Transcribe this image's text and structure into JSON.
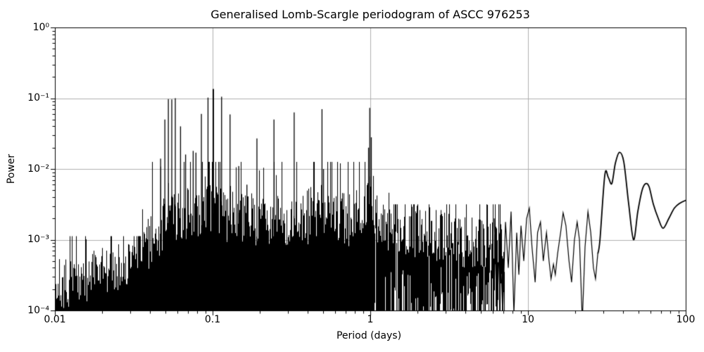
{
  "chart_data": {
    "type": "line",
    "title": "Generalised Lomb-Scargle periodogram of ASCC 976253",
    "xlabel": "Period (days)",
    "ylabel": "Power",
    "xscale": "log",
    "yscale": "log",
    "xlim": [
      0.01,
      100
    ],
    "ylim": [
      0.0001,
      1
    ],
    "grid": true,
    "legend": "none",
    "x_tick_labels": [
      "0.01",
      "0.1",
      "1",
      "10",
      "100"
    ],
    "y_tick_labels": [
      "10⁰",
      "10⁻¹",
      "10⁻²",
      "10⁻³",
      "10⁻⁴"
    ],
    "line_color": "#000000",
    "grid_color": "#b0b0b0",
    "axes_color": "#000000",
    "background": "#ffffff",
    "noise_seed": 7,
    "major_peaks_period_power": [
      [
        0.0468,
        0.014
      ],
      [
        0.0498,
        0.05
      ],
      [
        0.0524,
        0.097
      ],
      [
        0.0551,
        0.096
      ],
      [
        0.058,
        0.1
      ],
      [
        0.0626,
        0.04
      ],
      [
        0.0674,
        0.016
      ],
      [
        0.0753,
        0.018
      ],
      [
        0.0784,
        0.017
      ],
      [
        0.0849,
        0.06
      ],
      [
        0.0935,
        0.102
      ],
      [
        0.101,
        0.135
      ],
      [
        0.114,
        0.105
      ],
      [
        0.129,
        0.059
      ],
      [
        0.1465,
        0.011
      ],
      [
        0.165,
        0.006
      ],
      [
        0.191,
        0.027
      ],
      [
        0.245,
        0.05
      ],
      [
        0.329,
        0.063
      ],
      [
        0.494,
        0.07
      ],
      [
        0.505,
        0.01
      ],
      [
        0.975,
        0.02
      ],
      [
        0.992,
        0.073
      ],
      [
        1.015,
        0.028
      ]
    ],
    "noise_envelope_log10": [
      [
        -2.0,
        -3.52
      ],
      [
        -1.85,
        -3.45
      ],
      [
        -1.7,
        -3.35
      ],
      [
        -1.55,
        -3.18
      ],
      [
        -1.42,
        -2.98
      ],
      [
        -1.3,
        -2.62
      ],
      [
        -1.15,
        -2.5
      ],
      [
        -1.0,
        -2.48
      ],
      [
        -0.88,
        -2.55
      ],
      [
        -0.65,
        -2.6
      ],
      [
        -0.45,
        -2.62
      ],
      [
        -0.31,
        -2.5
      ],
      [
        -0.2,
        -2.58
      ],
      [
        -0.12,
        -2.6
      ],
      [
        -0.04,
        -2.35
      ],
      [
        0.03,
        -2.6
      ],
      [
        0.2,
        -2.72
      ],
      [
        0.45,
        -2.82
      ],
      [
        0.65,
        -2.92
      ],
      [
        0.85,
        -3.0
      ]
    ],
    "dense_region_logP": [
      -2.0,
      0.848
    ],
    "jagged_tail_period_power": [
      [
        6.11,
        0.002
      ],
      [
        6.36,
        9e-05
      ],
      [
        6.63,
        0.00126
      ],
      [
        6.91,
        9e-05
      ],
      [
        7.2,
        0.00178
      ],
      [
        7.5,
        0.0004
      ],
      [
        7.81,
        0.0025
      ],
      [
        8.14,
        9e-05
      ],
      [
        8.48,
        0.00126
      ],
      [
        8.75,
        0.00032
      ],
      [
        9.03,
        0.00158
      ],
      [
        9.4,
        0.0005
      ],
      [
        9.8,
        0.002
      ],
      [
        10.2,
        0.0028
      ],
      [
        10.6,
        0.00079
      ],
      [
        11.1,
        0.00025
      ],
      [
        11.5,
        0.00126
      ],
      [
        12.0,
        0.00178
      ],
      [
        12.5,
        0.0005
      ],
      [
        13.1,
        0.00126
      ],
      [
        13.6,
        0.0005
      ],
      [
        14.0,
        0.00028
      ],
      [
        14.5,
        0.00045
      ],
      [
        14.9,
        0.00032
      ],
      [
        15.4,
        0.00063
      ],
      [
        16.1,
        0.00126
      ],
      [
        16.7,
        0.0024
      ],
      [
        17.4,
        0.00158
      ],
      [
        18.2,
        0.0005
      ],
      [
        18.9,
        0.00025
      ],
      [
        19.7,
        0.001
      ],
      [
        20.5,
        0.00178
      ],
      [
        21.2,
        0.001
      ],
      [
        22.1,
        7e-05
      ],
      [
        23.0,
        0.00079
      ],
      [
        24.0,
        0.0025
      ],
      [
        25.0,
        0.00126
      ],
      [
        26.0,
        0.0004
      ],
      [
        26.8,
        0.00028
      ],
      [
        27.7,
        0.00063
      ]
    ],
    "smooth_tail_period_power": [
      [
        28.6,
        0.001
      ],
      [
        30.7,
        0.0082
      ],
      [
        32.3,
        0.0076
      ],
      [
        34.0,
        0.0062
      ],
      [
        35.8,
        0.012
      ],
      [
        38.0,
        0.0172
      ],
      [
        40.5,
        0.0126
      ],
      [
        43.5,
        0.0032
      ],
      [
        46.7,
        0.001
      ],
      [
        49.7,
        0.0025
      ],
      [
        52.9,
        0.005
      ],
      [
        55.7,
        0.0062
      ],
      [
        58.6,
        0.0056
      ],
      [
        62.3,
        0.0032
      ],
      [
        67.0,
        0.002
      ],
      [
        71.9,
        0.00145
      ],
      [
        78.2,
        0.002
      ],
      [
        84.8,
        0.0028
      ],
      [
        92.1,
        0.0033
      ],
      [
        100.0,
        0.0036
      ]
    ]
  }
}
